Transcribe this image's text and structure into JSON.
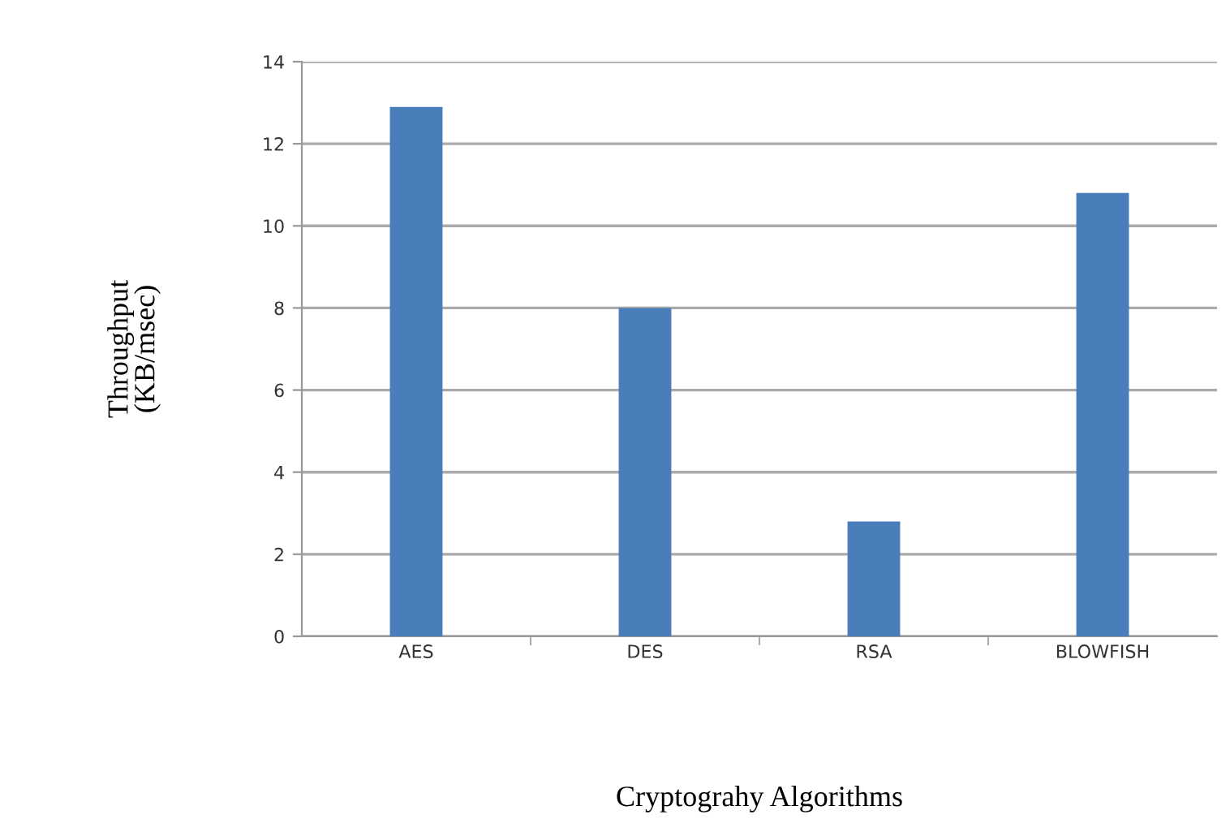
{
  "chart_data": {
    "type": "bar",
    "xlabel": "Cryptograhy Algorithms",
    "ylabel": "Throughput\n(KB/msec)",
    "categories": [
      "AES",
      "DES",
      "RSA",
      "BLOWFISH"
    ],
    "values": [
      12.9,
      8.0,
      2.8,
      10.8
    ],
    "color": "#4a7ebb",
    "ylim": [
      0,
      14
    ],
    "yticks": [
      0,
      2,
      4,
      6,
      8,
      10,
      12,
      14
    ],
    "grid": "y"
  }
}
